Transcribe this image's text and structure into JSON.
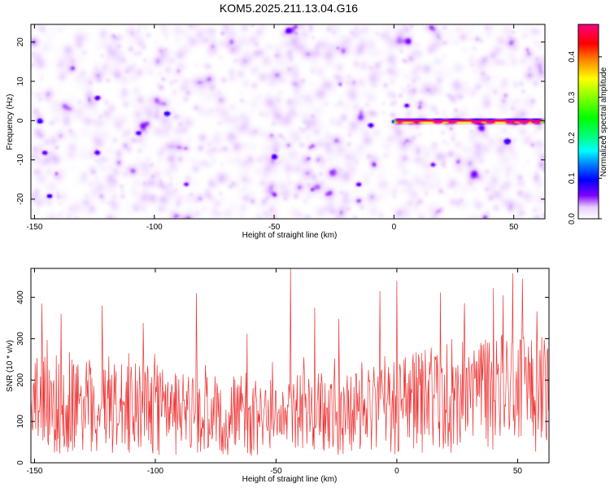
{
  "title": "KOM5.2025.211.13.04.G16",
  "chart_data": [
    {
      "type": "heatmap",
      "title": "KOM5.2025.211.13.04.G16",
      "xlabel": "Height of straight line (km)",
      "ylabel": "Frequency (Hz)",
      "xlim": [
        -151.5,
        63
      ],
      "ylim": [
        -25,
        24.5
      ],
      "x_ticks": [
        -150,
        -100,
        -50,
        0,
        50
      ],
      "x_tick_labels": [
        "-150",
        "-100",
        "-50",
        "0",
        "50"
      ],
      "y_ticks": [
        -20,
        -10,
        0,
        10,
        20
      ],
      "y_tick_labels": [
        "-20",
        "-10",
        "0",
        "10",
        "20"
      ],
      "colorbar": {
        "label": "Normalized spectral amplitude",
        "range": [
          0,
          0.48
        ],
        "ticks": [
          0.0,
          0.1,
          0.2,
          0.3,
          0.4
        ],
        "tick_labels": [
          "0.0",
          "0.1",
          "0.2",
          "0.3",
          "0.4"
        ]
      },
      "background_level": 0.04,
      "signal": {
        "frequency_hz": 0,
        "x_start": 0,
        "x_end": 62,
        "peaks": [
          {
            "x": 2,
            "value": 0.15
          },
          {
            "x": 9,
            "value": 0.18
          },
          {
            "x": 18,
            "value": 0.45
          },
          {
            "x": 24,
            "value": 0.33
          },
          {
            "x": 34,
            "value": 0.44
          },
          {
            "x": 40,
            "value": 0.36
          },
          {
            "x": 48,
            "value": 0.34
          },
          {
            "x": 54,
            "value": 0.45
          },
          {
            "x": 59,
            "value": 0.45
          }
        ]
      },
      "hotspots": [
        {
          "x": -148,
          "y": 0,
          "value": 0.1
        },
        {
          "x": -146,
          "y": -8,
          "value": 0.08
        },
        {
          "x": -144,
          "y": -19,
          "value": 0.1
        },
        {
          "x": -124,
          "y": 6,
          "value": 0.09
        },
        {
          "x": -95,
          "y": 2,
          "value": 0.12
        },
        {
          "x": -107,
          "y": -3,
          "value": 0.08
        },
        {
          "x": -124,
          "y": -8,
          "value": 0.08
        },
        {
          "x": -10,
          "y": -1,
          "value": 0.09
        },
        {
          "x": 5,
          "y": 4,
          "value": 0.08
        },
        {
          "x": 47,
          "y": -5,
          "value": 0.1
        },
        {
          "x": -15,
          "y": -16,
          "value": 0.08
        },
        {
          "x": -50,
          "y": -9,
          "value": 0.07
        },
        {
          "x": -87,
          "y": -16,
          "value": 0.07
        },
        {
          "x": 16,
          "y": -11,
          "value": 0.07
        }
      ]
    },
    {
      "type": "line",
      "xlabel": "Height of straight line (km)",
      "ylabel": "SNR (10 * v/v)",
      "xlim": [
        -151.5,
        63
      ],
      "ylim": [
        0,
        470
      ],
      "x_ticks": [
        -150,
        -100,
        -50,
        0,
        50
      ],
      "x_tick_labels": [
        "-150",
        "-100",
        "-50",
        "0",
        "50"
      ],
      "y_ticks": [
        0,
        100,
        200,
        300,
        400
      ],
      "y_tick_labels": [
        "0",
        "100",
        "200",
        "300",
        "400"
      ],
      "series": [
        {
          "color": "#ee3333",
          "sample_spacing_km": 0.25,
          "baseline": [
            [
              -151,
              150
            ],
            [
              -120,
              140
            ],
            [
              -90,
              118
            ],
            [
              -60,
              112
            ],
            [
              -30,
              118
            ],
            [
              -10,
              128
            ],
            [
              10,
              148
            ],
            [
              40,
              168
            ],
            [
              63,
              172
            ]
          ],
          "typical_range": [
            30,
            290
          ],
          "peaks": [
            {
              "x": -147,
              "y": 385
            },
            {
              "x": -139,
              "y": 360
            },
            {
              "x": -122,
              "y": 380
            },
            {
              "x": -105,
              "y": 338
            },
            {
              "x": -83,
              "y": 410
            },
            {
              "x": -62,
              "y": 312
            },
            {
              "x": -44,
              "y": 470
            },
            {
              "x": -34,
              "y": 375
            },
            {
              "x": -24,
              "y": 348
            },
            {
              "x": -7,
              "y": 415
            },
            {
              "x": 0,
              "y": 440
            },
            {
              "x": 18,
              "y": 412
            },
            {
              "x": 28,
              "y": 386
            },
            {
              "x": 40,
              "y": 422
            },
            {
              "x": 44,
              "y": 405
            },
            {
              "x": 48,
              "y": 458
            },
            {
              "x": 52,
              "y": 445
            },
            {
              "x": 58,
              "y": 366
            }
          ]
        }
      ]
    }
  ]
}
